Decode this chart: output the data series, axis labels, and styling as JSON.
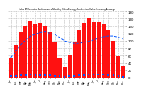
{
  "title": "Solar PV/Inverter Performance Monthly Solar Energy Production Value Running Average",
  "months": [
    "Jan",
    "Feb",
    "Mar",
    "Apr",
    "May",
    "Jun",
    "Jul",
    "Aug",
    "Sep",
    "Oct",
    "Nov",
    "Dec",
    "Jan",
    "Feb",
    "Mar",
    "Apr",
    "May",
    "Jun",
    "Jul",
    "Aug",
    "Sep",
    "Oct",
    "Nov",
    "Dec"
  ],
  "values": [
    55,
    90,
    125,
    140,
    155,
    145,
    148,
    142,
    125,
    95,
    52,
    28,
    60,
    95,
    130,
    148,
    160,
    150,
    152,
    145,
    130,
    100,
    58,
    32
  ],
  "running_avg": [
    55,
    72,
    90,
    102,
    113,
    118,
    123,
    125,
    121,
    117,
    109,
    100,
    96,
    93,
    93,
    96,
    99,
    103,
    107,
    111,
    113,
    113,
    110,
    105
  ],
  "small_values": [
    4,
    5,
    6,
    7,
    8,
    7,
    7,
    7,
    6,
    5,
    4,
    3,
    4,
    5,
    6,
    7,
    9,
    8,
    8,
    8,
    7,
    6,
    5,
    3
  ],
  "bar_color": "#ff1111",
  "avg_color": "#0055ff",
  "small_color": "#0055ff",
  "bg_color": "#ffffff",
  "grid_color": "#bbbbbb",
  "ylim": [
    0,
    180
  ],
  "yticks": [
    0,
    20,
    40,
    60,
    80,
    100,
    120,
    140,
    160,
    180
  ]
}
